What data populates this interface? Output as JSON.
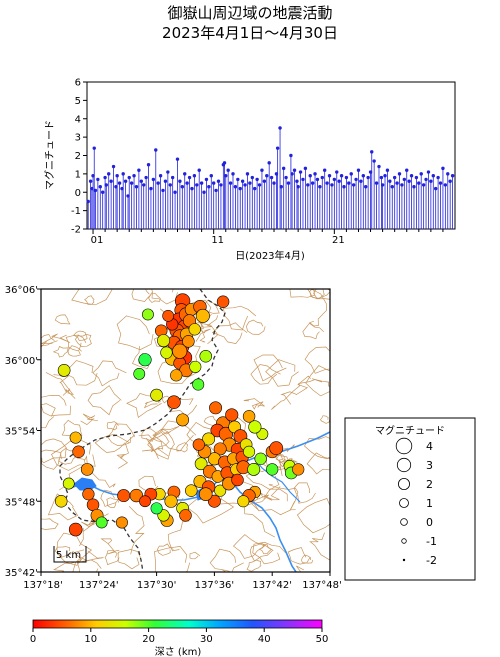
{
  "title_line1": "御嶽山周辺域の地震活動",
  "title_line2": "2023年4月1日～4月30日",
  "chart_data": {
    "type": "stem",
    "ylabel": "マグニチュード",
    "xlabel": "日(2023年4月)",
    "ylim": [
      -2,
      6
    ],
    "xlim": [
      0.5,
      31
    ],
    "yticks": [
      "6",
      "5",
      "4",
      "3",
      "2",
      "1",
      "0",
      "-1",
      "-2"
    ],
    "xticks": [
      {
        "day": 1,
        "label": "01"
      },
      {
        "day": 11,
        "label": "11"
      },
      {
        "day": 21,
        "label": "21"
      }
    ],
    "series_color": "#2222dd",
    "events": [
      [
        0.6,
        -0.5
      ],
      [
        0.8,
        0.6
      ],
      [
        0.9,
        0.2
      ],
      [
        1.0,
        0.9
      ],
      [
        1.1,
        2.4
      ],
      [
        1.2,
        0.1
      ],
      [
        1.4,
        0.7
      ],
      [
        1.6,
        0.3
      ],
      [
        1.8,
        0.0
      ],
      [
        2.0,
        0.8
      ],
      [
        2.1,
        0.4
      ],
      [
        2.3,
        1.0
      ],
      [
        2.5,
        0.6
      ],
      [
        2.7,
        1.4
      ],
      [
        2.9,
        0.3
      ],
      [
        3.0,
        0.9
      ],
      [
        3.2,
        0.5
      ],
      [
        3.4,
        0.2
      ],
      [
        3.5,
        1.0
      ],
      [
        3.7,
        0.6
      ],
      [
        3.9,
        -0.2
      ],
      [
        4.0,
        0.8
      ],
      [
        4.2,
        0.5
      ],
      [
        4.4,
        0.9
      ],
      [
        4.6,
        0.3
      ],
      [
        4.8,
        1.2
      ],
      [
        5.0,
        0.6
      ],
      [
        5.2,
        0.4
      ],
      [
        5.4,
        0.8
      ],
      [
        5.6,
        1.5
      ],
      [
        5.8,
        0.2
      ],
      [
        6.0,
        0.7
      ],
      [
        6.2,
        2.3
      ],
      [
        6.4,
        0.5
      ],
      [
        6.6,
        0.9
      ],
      [
        6.8,
        0.1
      ],
      [
        7.0,
        0.6
      ],
      [
        7.2,
        1.1
      ],
      [
        7.4,
        0.4
      ],
      [
        7.6,
        0.8
      ],
      [
        7.8,
        0.0
      ],
      [
        8.0,
        1.8
      ],
      [
        8.2,
        0.6
      ],
      [
        8.4,
        0.3
      ],
      [
        8.6,
        1.0
      ],
      [
        8.8,
        0.5
      ],
      [
        9.0,
        0.8
      ],
      [
        9.2,
        0.2
      ],
      [
        9.4,
        0.9
      ],
      [
        9.6,
        0.4
      ],
      [
        9.8,
        1.2
      ],
      [
        10.0,
        0.5
      ],
      [
        10.2,
        0.0
      ],
      [
        10.4,
        0.7
      ],
      [
        10.6,
        0.3
      ],
      [
        10.8,
        0.9
      ],
      [
        11.0,
        0.5
      ],
      [
        11.2,
        0.1
      ],
      [
        11.4,
        0.6
      ],
      [
        11.6,
        0.4
      ],
      [
        11.8,
        1.5
      ],
      [
        11.9,
        1.6
      ],
      [
        12.0,
        0.9
      ],
      [
        12.2,
        1.2
      ],
      [
        12.4,
        0.5
      ],
      [
        12.6,
        1.0
      ],
      [
        12.8,
        0.3
      ],
      [
        13.0,
        0.7
      ],
      [
        13.2,
        0.2
      ],
      [
        13.4,
        0.6
      ],
      [
        13.6,
        0.4
      ],
      [
        13.8,
        1.0
      ],
      [
        14.0,
        0.5
      ],
      [
        14.2,
        0.8
      ],
      [
        14.4,
        0.2
      ],
      [
        14.6,
        0.7
      ],
      [
        14.8,
        0.4
      ],
      [
        15.0,
        1.2
      ],
      [
        15.2,
        0.6
      ],
      [
        15.4,
        0.9
      ],
      [
        15.6,
        1.6
      ],
      [
        15.8,
        0.8
      ],
      [
        16.0,
        0.5
      ],
      [
        16.2,
        1.0
      ],
      [
        16.3,
        2.4
      ],
      [
        16.5,
        3.5
      ],
      [
        16.6,
        0.3
      ],
      [
        16.8,
        1.3
      ],
      [
        17.0,
        0.8
      ],
      [
        17.2,
        0.5
      ],
      [
        17.4,
        2.0
      ],
      [
        17.5,
        1.0
      ],
      [
        17.7,
        1.2
      ],
      [
        17.9,
        0.6
      ],
      [
        18.0,
        0.3
      ],
      [
        18.2,
        1.1
      ],
      [
        18.4,
        0.7
      ],
      [
        18.6,
        1.3
      ],
      [
        18.8,
        0.4
      ],
      [
        19.0,
        0.9
      ],
      [
        19.2,
        0.5
      ],
      [
        19.4,
        1.0
      ],
      [
        19.6,
        0.7
      ],
      [
        19.8,
        0.3
      ],
      [
        20.0,
        0.8
      ],
      [
        20.2,
        1.2
      ],
      [
        20.4,
        0.5
      ],
      [
        20.6,
        0.9
      ],
      [
        20.8,
        0.4
      ],
      [
        21.0,
        0.7
      ],
      [
        21.2,
        1.1
      ],
      [
        21.4,
        0.6
      ],
      [
        21.6,
        0.9
      ],
      [
        21.8,
        0.3
      ],
      [
        22.0,
        0.8
      ],
      [
        22.2,
        0.5
      ],
      [
        22.4,
        1.0
      ],
      [
        22.6,
        0.4
      ],
      [
        22.8,
        0.7
      ],
      [
        23.0,
        1.2
      ],
      [
        23.2,
        0.6
      ],
      [
        23.4,
        0.9
      ],
      [
        23.6,
        0.3
      ],
      [
        23.8,
        0.8
      ],
      [
        24.0,
        1.1
      ],
      [
        24.1,
        2.2
      ],
      [
        24.3,
        1.7
      ],
      [
        24.5,
        0.5
      ],
      [
        24.7,
        1.4
      ],
      [
        24.9,
        0.8
      ],
      [
        25.0,
        0.4
      ],
      [
        25.2,
        0.9
      ],
      [
        25.4,
        1.2
      ],
      [
        25.6,
        0.6
      ],
      [
        25.8,
        0.3
      ],
      [
        26.0,
        0.8
      ],
      [
        26.2,
        0.5
      ],
      [
        26.4,
        1.0
      ],
      [
        26.6,
        0.4
      ],
      [
        26.8,
        0.7
      ],
      [
        27.0,
        1.2
      ],
      [
        27.2,
        0.6
      ],
      [
        27.4,
        0.9
      ],
      [
        27.6,
        0.3
      ],
      [
        27.8,
        0.8
      ],
      [
        28.0,
        0.5
      ],
      [
        28.2,
        1.0
      ],
      [
        28.4,
        0.4
      ],
      [
        28.6,
        0.7
      ],
      [
        28.8,
        1.1
      ],
      [
        29.0,
        0.6
      ],
      [
        29.2,
        0.9
      ],
      [
        29.4,
        0.2
      ],
      [
        29.6,
        0.8
      ],
      [
        29.8,
        0.5
      ],
      [
        30.0,
        1.3
      ],
      [
        30.2,
        0.4
      ],
      [
        30.4,
        1.0
      ],
      [
        30.6,
        0.6
      ],
      [
        30.8,
        0.9
      ]
    ]
  },
  "map": {
    "lon_ticks": [
      "137°18'",
      "137°24'",
      "137°30'",
      "137°36'",
      "137°42'",
      "137°48'"
    ],
    "lat_ticks": [
      "36°06'",
      "36°00'",
      "35°54'",
      "35°48'",
      "35°42'"
    ],
    "lon_range": [
      137.3,
      137.8
    ],
    "lat_range": [
      35.7,
      36.1
    ],
    "scale_label": "5 km",
    "contour_color": "#c8955a",
    "river_color": "#3b8ff0",
    "lake_color": "#2a7ff5",
    "boundary_color": "#333333",
    "epicenters": [
      [
        137.545,
        36.083,
        3.6,
        4
      ],
      [
        137.543,
        36.07,
        3.0,
        5
      ],
      [
        137.538,
        36.057,
        2.8,
        3
      ],
      [
        137.551,
        36.064,
        3.1,
        6
      ],
      [
        137.56,
        36.071,
        2.5,
        8
      ],
      [
        137.548,
        36.047,
        2.8,
        4
      ],
      [
        137.535,
        36.041,
        3.2,
        5
      ],
      [
        137.557,
        36.055,
        2.6,
        7
      ],
      [
        137.527,
        36.05,
        2.2,
        3
      ],
      [
        137.54,
        36.033,
        3.0,
        6
      ],
      [
        137.552,
        36.036,
        2.7,
        9
      ],
      [
        137.53,
        36.024,
        2.9,
        5
      ],
      [
        137.544,
        36.018,
        3.1,
        4
      ],
      [
        137.555,
        36.026,
        2.3,
        8
      ],
      [
        137.536,
        36.006,
        2.7,
        6
      ],
      [
        137.549,
        36.003,
        3.2,
        3
      ],
      [
        137.526,
        36.001,
        2.6,
        10
      ],
      [
        137.54,
        35.995,
        2.4,
        5
      ],
      [
        137.551,
        35.985,
        2.8,
        7
      ],
      [
        137.534,
        35.978,
        2.2,
        9
      ],
      [
        137.508,
        36.041,
        2.3,
        6
      ],
      [
        137.512,
        36.027,
        2.5,
        14
      ],
      [
        137.517,
        36.01,
        2.2,
        15
      ],
      [
        137.52,
        36.062,
        2.0,
        5
      ],
      [
        137.575,
        36.075,
        2.7,
        6
      ],
      [
        137.566,
        36.043,
        2.2,
        12
      ],
      [
        137.58,
        36.062,
        3.0,
        10
      ],
      [
        137.615,
        36.082,
        2.3,
        5
      ],
      [
        137.485,
        36.064,
        2.0,
        18
      ],
      [
        137.48,
        36.0,
        2.6,
        22
      ],
      [
        137.54,
        36.012,
        3.5,
        8
      ],
      [
        137.53,
        35.94,
        2.8,
        5
      ],
      [
        137.5,
        35.95,
        2.4,
        14
      ],
      [
        137.47,
        35.98,
        2.0,
        20
      ],
      [
        137.567,
        35.99,
        2.1,
        16
      ],
      [
        137.585,
        36.005,
        2.3,
        17
      ],
      [
        137.572,
        35.965,
        2.1,
        20
      ],
      [
        137.545,
        35.915,
        2.5,
        9
      ],
      [
        137.602,
        35.932,
        2.5,
        6
      ],
      [
        137.615,
        35.91,
        3.0,
        7
      ],
      [
        137.63,
        35.922,
        2.6,
        5
      ],
      [
        137.605,
        35.9,
        2.8,
        4
      ],
      [
        137.62,
        35.895,
        3.1,
        6
      ],
      [
        137.635,
        35.905,
        2.4,
        11
      ],
      [
        137.645,
        35.892,
        2.9,
        5
      ],
      [
        137.626,
        35.88,
        3.0,
        8
      ],
      [
        137.61,
        35.874,
        2.5,
        7
      ],
      [
        137.64,
        35.873,
        2.7,
        4
      ],
      [
        137.655,
        35.88,
        2.3,
        13
      ],
      [
        137.6,
        35.86,
        2.6,
        10
      ],
      [
        137.618,
        35.855,
        2.8,
        6
      ],
      [
        137.633,
        35.86,
        2.4,
        9
      ],
      [
        137.648,
        35.862,
        2.6,
        5
      ],
      [
        137.66,
        35.87,
        2.1,
        15
      ],
      [
        137.59,
        35.888,
        2.5,
        12
      ],
      [
        137.583,
        35.87,
        2.7,
        8
      ],
      [
        137.573,
        35.88,
        2.2,
        6
      ],
      [
        137.577,
        35.853,
        2.4,
        14
      ],
      [
        137.592,
        35.842,
        2.8,
        7
      ],
      [
        137.606,
        35.835,
        2.3,
        9
      ],
      [
        137.622,
        35.84,
        2.6,
        5
      ],
      [
        137.638,
        35.845,
        2.2,
        11
      ],
      [
        137.65,
        35.848,
        2.9,
        6
      ],
      [
        137.575,
        35.828,
        2.5,
        10
      ],
      [
        137.59,
        35.82,
        2.7,
        5
      ],
      [
        137.61,
        35.815,
        2.1,
        13
      ],
      [
        137.625,
        35.825,
        2.8,
        8
      ],
      [
        137.64,
        35.83,
        2.3,
        4
      ],
      [
        137.668,
        35.845,
        2.5,
        17
      ],
      [
        137.68,
        35.86,
        2.2,
        18
      ],
      [
        137.683,
        35.895,
        2.0,
        15
      ],
      [
        137.66,
        35.92,
        2.3,
        9
      ],
      [
        137.67,
        35.905,
        2.6,
        16
      ],
      [
        137.7,
        35.87,
        2.5,
        7
      ],
      [
        137.707,
        35.875,
        2.9,
        5
      ],
      [
        137.73,
        35.85,
        2.0,
        16
      ],
      [
        137.733,
        35.84,
        2.4,
        19
      ],
      [
        137.745,
        35.845,
        2.2,
        8
      ],
      [
        137.7,
        35.845,
        2.2,
        20
      ],
      [
        137.67,
        35.813,
        2.2,
        9
      ],
      [
        137.66,
        35.808,
        2.6,
        6
      ],
      [
        137.65,
        35.8,
        2.1,
        12
      ],
      [
        137.6,
        35.8,
        2.5,
        5
      ],
      [
        137.585,
        35.81,
        2.8,
        8
      ],
      [
        137.56,
        35.815,
        2.3,
        11
      ],
      [
        137.53,
        35.813,
        2.4,
        6
      ],
      [
        137.505,
        35.81,
        2.2,
        12
      ],
      [
        137.49,
        35.81,
        2.4,
        4
      ],
      [
        137.465,
        35.808,
        2.7,
        7
      ],
      [
        137.443,
        35.808,
        2.5,
        5
      ],
      [
        137.525,
        35.8,
        2.6,
        10
      ],
      [
        137.545,
        35.79,
        2.4,
        14
      ],
      [
        137.55,
        35.78,
        2.3,
        6
      ],
      [
        137.518,
        35.773,
        2.6,
        9
      ],
      [
        137.512,
        35.78,
        2.2,
        15
      ],
      [
        137.5,
        35.79,
        2.1,
        22
      ],
      [
        137.48,
        35.8,
        2.0,
        4
      ],
      [
        137.39,
        35.795,
        2.3,
        5
      ],
      [
        137.397,
        35.78,
        2.5,
        8
      ],
      [
        137.382,
        35.81,
        2.2,
        6
      ],
      [
        137.36,
        35.76,
        2.8,
        4
      ],
      [
        137.34,
        35.985,
        2.4,
        14
      ],
      [
        137.36,
        35.89,
        2.1,
        10
      ],
      [
        137.365,
        35.87,
        2.3,
        6
      ],
      [
        137.38,
        35.845,
        2.4,
        8
      ],
      [
        137.348,
        35.825,
        2.0,
        15
      ],
      [
        137.335,
        35.8,
        2.3,
        12
      ],
      [
        137.44,
        35.77,
        2.1,
        8
      ],
      [
        137.405,
        35.77,
        2.0,
        20
      ]
    ]
  },
  "colorbar": {
    "label": "深さ (km)",
    "ticks": [
      "0",
      "10",
      "20",
      "30",
      "40",
      "50"
    ],
    "range": [
      0,
      50
    ]
  },
  "legend": {
    "title": "マグニチュード",
    "items": [
      {
        "mag": 4,
        "label": "4"
      },
      {
        "mag": 3,
        "label": "3"
      },
      {
        "mag": 2,
        "label": "2"
      },
      {
        "mag": 1,
        "label": "1"
      },
      {
        "mag": 0,
        "label": "0"
      },
      {
        "mag": -1,
        "label": "-1"
      },
      {
        "mag": -2,
        "label": "-2"
      }
    ]
  }
}
